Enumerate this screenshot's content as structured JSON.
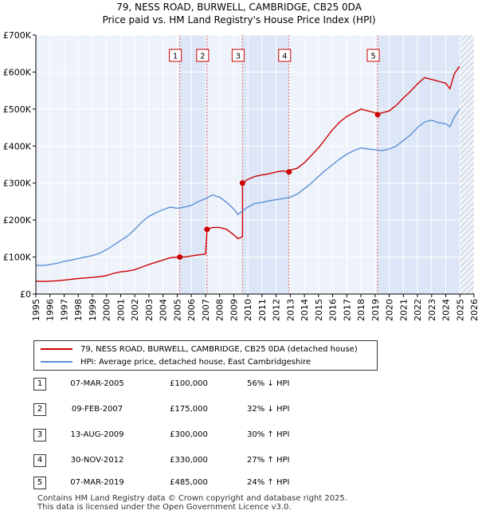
{
  "chart_data": {
    "type": "line",
    "title": "79, NESS ROAD, BURWELL, CAMBRIDGE, CB25 0DA",
    "subtitle": "Price paid vs. HM Land Registry's House Price Index (HPI)",
    "xlim": [
      1995,
      2026
    ],
    "ylim": [
      0,
      700000
    ],
    "x_ticks": [
      1995,
      1996,
      1997,
      1998,
      1999,
      2000,
      2001,
      2002,
      2003,
      2004,
      2005,
      2006,
      2007,
      2008,
      2009,
      2010,
      2011,
      2012,
      2013,
      2014,
      2015,
      2016,
      2017,
      2018,
      2019,
      2020,
      2021,
      2022,
      2023,
      2024,
      2025,
      2026
    ],
    "y_ticks": [
      0,
      100000,
      200000,
      300000,
      400000,
      500000,
      600000,
      700000
    ],
    "y_tick_labels": [
      "£0",
      "£100K",
      "£200K",
      "£300K",
      "£400K",
      "£500K",
      "£600K",
      "£700K"
    ],
    "future_from": 2025.0,
    "series": [
      {
        "name": "79, NESS ROAD, BURWELL, CAMBRIDGE, CB25 0DA (detached house)",
        "color": "#cc0000",
        "points": [
          [
            1995.0,
            35000
          ],
          [
            1995.5,
            34000
          ],
          [
            1996.0,
            35000
          ],
          [
            1996.5,
            36000
          ],
          [
            1997.0,
            38000
          ],
          [
            1997.5,
            40000
          ],
          [
            1998.0,
            42000
          ],
          [
            1998.5,
            43500
          ],
          [
            1999.0,
            45000
          ],
          [
            1999.5,
            47000
          ],
          [
            2000.0,
            50000
          ],
          [
            2000.5,
            56000
          ],
          [
            2001.0,
            60000
          ],
          [
            2001.5,
            62000
          ],
          [
            2002.0,
            66000
          ],
          [
            2002.5,
            73000
          ],
          [
            2003.0,
            80000
          ],
          [
            2003.5,
            86000
          ],
          [
            2004.0,
            92000
          ],
          [
            2004.5,
            98000
          ],
          [
            2005.0,
            100000
          ],
          [
            2005.18,
            100000
          ],
          [
            2005.5,
            100000
          ],
          [
            2006.0,
            103000
          ],
          [
            2006.5,
            106000
          ],
          [
            2007.0,
            108000
          ],
          [
            2007.11,
            175000
          ],
          [
            2007.5,
            180000
          ],
          [
            2008.0,
            180000
          ],
          [
            2008.5,
            175000
          ],
          [
            2009.0,
            160000
          ],
          [
            2009.3,
            150000
          ],
          [
            2009.62,
            155000
          ],
          [
            2009.62,
            300000
          ],
          [
            2010.0,
            310000
          ],
          [
            2010.5,
            318000
          ],
          [
            2011.0,
            322000
          ],
          [
            2011.5,
            325000
          ],
          [
            2012.0,
            330000
          ],
          [
            2012.5,
            333000
          ],
          [
            2012.91,
            330000
          ],
          [
            2013.0,
            335000
          ],
          [
            2013.5,
            340000
          ],
          [
            2014.0,
            355000
          ],
          [
            2014.5,
            375000
          ],
          [
            2015.0,
            395000
          ],
          [
            2015.5,
            420000
          ],
          [
            2016.0,
            445000
          ],
          [
            2016.5,
            465000
          ],
          [
            2017.0,
            480000
          ],
          [
            2017.5,
            490000
          ],
          [
            2018.0,
            500000
          ],
          [
            2018.5,
            495000
          ],
          [
            2019.0,
            490000
          ],
          [
            2019.18,
            485000
          ],
          [
            2019.5,
            490000
          ],
          [
            2020.0,
            495000
          ],
          [
            2020.5,
            510000
          ],
          [
            2021.0,
            530000
          ],
          [
            2021.5,
            548000
          ],
          [
            2022.0,
            568000
          ],
          [
            2022.5,
            585000
          ],
          [
            2023.0,
            580000
          ],
          [
            2023.5,
            575000
          ],
          [
            2024.0,
            570000
          ],
          [
            2024.3,
            555000
          ],
          [
            2024.6,
            595000
          ],
          [
            2024.9,
            612000
          ],
          [
            2025.0,
            615000
          ]
        ]
      },
      {
        "name": "HPI: Average price, detached house, East Cambridgeshire",
        "color": "#5b8fd6",
        "points": [
          [
            1995.0,
            78000
          ],
          [
            1995.5,
            77000
          ],
          [
            1996.0,
            80000
          ],
          [
            1996.5,
            83000
          ],
          [
            1997.0,
            88000
          ],
          [
            1997.5,
            92000
          ],
          [
            1998.0,
            96000
          ],
          [
            1998.5,
            100000
          ],
          [
            1999.0,
            104000
          ],
          [
            1999.5,
            110000
          ],
          [
            2000.0,
            120000
          ],
          [
            2000.5,
            132000
          ],
          [
            2001.0,
            145000
          ],
          [
            2001.5,
            157000
          ],
          [
            2002.0,
            175000
          ],
          [
            2002.5,
            195000
          ],
          [
            2003.0,
            210000
          ],
          [
            2003.5,
            220000
          ],
          [
            2004.0,
            228000
          ],
          [
            2004.5,
            235000
          ],
          [
            2005.0,
            232000
          ],
          [
            2005.5,
            235000
          ],
          [
            2006.0,
            240000
          ],
          [
            2006.5,
            250000
          ],
          [
            2007.0,
            258000
          ],
          [
            2007.5,
            268000
          ],
          [
            2008.0,
            262000
          ],
          [
            2008.5,
            248000
          ],
          [
            2009.0,
            230000
          ],
          [
            2009.3,
            215000
          ],
          [
            2009.62,
            225000
          ],
          [
            2010.0,
            235000
          ],
          [
            2010.5,
            245000
          ],
          [
            2011.0,
            248000
          ],
          [
            2011.5,
            252000
          ],
          [
            2012.0,
            255000
          ],
          [
            2012.5,
            258000
          ],
          [
            2013.0,
            262000
          ],
          [
            2013.5,
            270000
          ],
          [
            2014.0,
            285000
          ],
          [
            2014.5,
            300000
          ],
          [
            2015.0,
            318000
          ],
          [
            2015.5,
            335000
          ],
          [
            2016.0,
            350000
          ],
          [
            2016.5,
            365000
          ],
          [
            2017.0,
            378000
          ],
          [
            2017.5,
            388000
          ],
          [
            2018.0,
            395000
          ],
          [
            2018.5,
            392000
          ],
          [
            2019.0,
            390000
          ],
          [
            2019.5,
            388000
          ],
          [
            2020.0,
            392000
          ],
          [
            2020.5,
            400000
          ],
          [
            2021.0,
            415000
          ],
          [
            2021.5,
            430000
          ],
          [
            2022.0,
            450000
          ],
          [
            2022.5,
            465000
          ],
          [
            2023.0,
            470000
          ],
          [
            2023.5,
            463000
          ],
          [
            2024.0,
            460000
          ],
          [
            2024.3,
            452000
          ],
          [
            2024.6,
            478000
          ],
          [
            2024.9,
            495000
          ],
          [
            2025.0,
            500000
          ]
        ]
      }
    ],
    "sales": [
      {
        "label": "1",
        "x": 2005.18,
        "value": 100000
      },
      {
        "label": "2",
        "x": 2007.11,
        "value": 175000
      },
      {
        "label": "3",
        "x": 2009.62,
        "value": 300000
      },
      {
        "label": "4",
        "x": 2012.91,
        "value": 330000
      },
      {
        "label": "5",
        "x": 2019.18,
        "value": 485000
      }
    ]
  },
  "legend": {
    "property_label": "79, NESS ROAD, BURWELL, CAMBRIDGE, CB25 0DA (detached house)",
    "hpi_label": "HPI: Average price, detached house, East Cambridgeshire"
  },
  "sales_table": [
    {
      "num": "1",
      "date": "07-MAR-2005",
      "price": "£100,000",
      "hpi": "56% ↓ HPI"
    },
    {
      "num": "2",
      "date": "09-FEB-2007",
      "price": "£175,000",
      "hpi": "32% ↓ HPI"
    },
    {
      "num": "3",
      "date": "13-AUG-2009",
      "price": "£300,000",
      "hpi": "30% ↑ HPI"
    },
    {
      "num": "4",
      "date": "30-NOV-2012",
      "price": "£330,000",
      "hpi": "27% ↑ HPI"
    },
    {
      "num": "5",
      "date": "07-MAR-2019",
      "price": "£485,000",
      "hpi": "24% ↑ HPI"
    }
  ],
  "footer": {
    "line1": "Contains HM Land Registry data © Crown copyright and database right 2025.",
    "line2": "This data is licensed under the Open Government Licence v3.0."
  },
  "colors": {
    "property": "#cc0000",
    "hpi": "#5b8fd6",
    "plot_bg": "#eef2fa",
    "shade": "#dde6f6",
    "grid": "#ffffff"
  }
}
